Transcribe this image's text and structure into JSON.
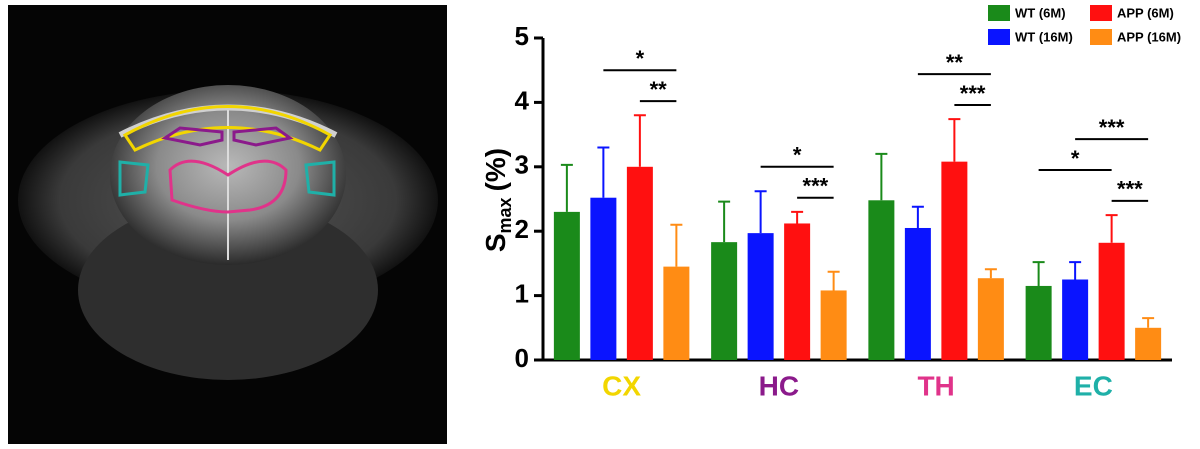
{
  "chart_data": {
    "type": "bar",
    "ylabel": [
      "S",
      "max",
      "(%)"
    ],
    "categories": [
      "CX",
      "HC",
      "TH",
      "EC"
    ],
    "category_colors": [
      "#f2d600",
      "#8b1a8b",
      "#e0338a",
      "#1fb0a8"
    ],
    "series": [
      {
        "name": "WT (6M)",
        "color": "#1a8a1a",
        "values": [
          2.3,
          1.83,
          2.48,
          1.15
        ],
        "errors": [
          0.73,
          0.63,
          0.72,
          0.37
        ]
      },
      {
        "name": "WT (16M)",
        "color": "#0a14ff",
        "values": [
          2.52,
          1.97,
          2.05,
          1.25
        ],
        "errors": [
          0.78,
          0.65,
          0.33,
          0.27
        ]
      },
      {
        "name": "APP (6M)",
        "color": "#ff1010",
        "values": [
          3.0,
          2.12,
          3.08,
          1.82
        ],
        "errors": [
          0.8,
          0.18,
          0.66,
          0.43
        ]
      },
      {
        "name": "APP (16M)",
        "color": "#ff8c14",
        "values": [
          1.45,
          1.08,
          1.27,
          0.5
        ],
        "errors": [
          0.65,
          0.29,
          0.14,
          0.15
        ]
      }
    ],
    "significance": [
      {
        "category": 0,
        "series": [
          2,
          3
        ],
        "label": "**"
      },
      {
        "category": 0,
        "series": [
          1,
          3
        ],
        "label": "*"
      },
      {
        "category": 1,
        "series": [
          2,
          3
        ],
        "label": "***"
      },
      {
        "category": 1,
        "series": [
          1,
          3
        ],
        "label": "*"
      },
      {
        "category": 2,
        "series": [
          2,
          3
        ],
        "label": "***"
      },
      {
        "category": 2,
        "series": [
          1,
          3
        ],
        "label": "**"
      },
      {
        "category": 3,
        "series": [
          2,
          3
        ],
        "label": "***"
      },
      {
        "category": 3,
        "series": [
          0,
          2
        ],
        "label": "*"
      },
      {
        "category": 3,
        "series": [
          1,
          3
        ],
        "label": "***"
      }
    ],
    "ylim": [
      0,
      5
    ],
    "yticks": [
      0,
      1,
      2,
      3,
      4,
      5
    ],
    "legend": "upper right"
  }
}
